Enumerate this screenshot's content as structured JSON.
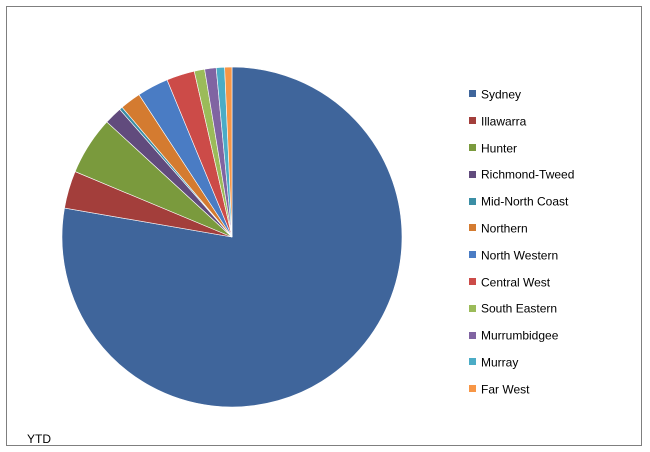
{
  "chart_data": {
    "type": "pie",
    "title": "",
    "categories": [
      "Sydney",
      "Illawarra",
      "Hunter",
      "Richmond-Tweed",
      "Mid-North Coast",
      "Northern",
      "North Western",
      "Central West",
      "South Eastern",
      "Murrumbidgee",
      "Murray",
      "Far West"
    ],
    "values": [
      78.5,
      3.6,
      5.6,
      1.7,
      0.3,
      2.0,
      3.0,
      2.7,
      1.0,
      1.1,
      0.8,
      0.7
    ],
    "colors": [
      "#3f659b",
      "#a33e3b",
      "#7a9a3d",
      "#614b7d",
      "#3b8ea5",
      "#d47b30",
      "#4a7cc4",
      "#cc4b48",
      "#9bbb59",
      "#8064a2",
      "#4bacc6",
      "#f79646"
    ],
    "legend_position": "right",
    "note": "YTD"
  }
}
